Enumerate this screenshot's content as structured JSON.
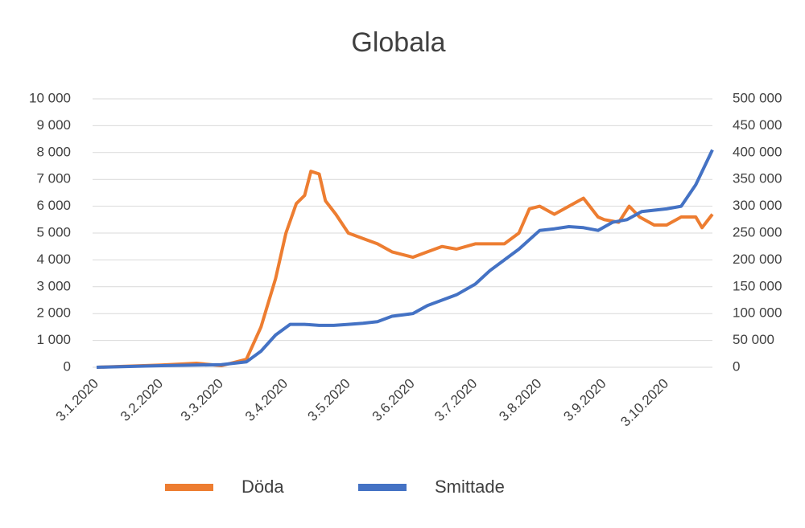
{
  "chart_data": {
    "type": "line",
    "title": "Globala",
    "xlim": [
      "3.1.2020",
      "25.10.2020"
    ],
    "xticks": [
      "3.1.2020",
      "3.2.2020",
      "3.3.2020",
      "3.4.2020",
      "3.5.2020",
      "3.6.2020",
      "3.7.2020",
      "3.8.2020",
      "3.9.2020",
      "3.10.2020"
    ],
    "ylim": [
      0,
      10000
    ],
    "yticks": [
      0,
      {
        "value": 1000,
        "label": "1 000"
      },
      {
        "value": 2000,
        "label": "2 000"
      },
      {
        "value": 3000,
        "label": "3 000"
      },
      {
        "value": 4000,
        "label": "4 000"
      },
      {
        "value": 5000,
        "label": "5 000"
      },
      {
        "value": 6000,
        "label": "6 000"
      },
      {
        "value": 7000,
        "label": "7 000"
      },
      {
        "value": 8000,
        "label": "8 000"
      },
      {
        "value": 9000,
        "label": "9 000"
      },
      {
        "value": 10000,
        "label": "10 000"
      }
    ],
    "y2lim": [
      0,
      500000
    ],
    "y2ticks": [
      0,
      {
        "value": 50000,
        "label": "50 000"
      },
      {
        "value": 100000,
        "label": "100 000"
      },
      {
        "value": 150000,
        "label": "150 000"
      },
      {
        "value": 200000,
        "label": "200 000"
      },
      {
        "value": 250000,
        "label": "250 000"
      },
      {
        "value": 300000,
        "label": "300 000"
      },
      {
        "value": 350000,
        "label": "350 000"
      },
      {
        "value": 400000,
        "label": "400 000"
      },
      {
        "value": 450000,
        "label": "450 000"
      },
      {
        "value": 500000,
        "label": "500 000"
      }
    ],
    "grid": true,
    "legend": "bottom",
    "series": [
      {
        "name": "Döda",
        "color": "#ed7d31",
        "x": [
          "3.1.2020",
          "3.2.2020",
          "20.2.2020",
          "3.3.2020",
          "15.3.2020",
          "22.3.2020",
          "29.3.2020",
          "3.4.2020",
          "8.4.2020",
          "12.4.2020",
          "15.4.2020",
          "19.4.2020",
          "22.4.2020",
          "27.4.2020",
          "3.5.2020",
          "10.5.2020",
          "17.5.2020",
          "24.5.2020",
          "3.6.2020",
          "10.6.2020",
          "17.6.2020",
          "24.6.2020",
          "3.7.2020",
          "10.7.2020",
          "17.7.2020",
          "24.7.2020",
          "29.7.2020",
          "3.8.2020",
          "10.8.2020",
          "17.8.2020",
          "24.8.2020",
          "31.8.2020",
          "3.9.2020",
          "10.9.2020",
          "15.9.2020",
          "20.9.2020",
          "27.9.2020",
          "3.10.2020",
          "10.10.2020",
          "17.10.2020",
          "20.10.2020",
          "25.10.2020"
        ],
        "values": [
          0,
          80,
          150,
          60,
          300,
          1500,
          3300,
          5000,
          6100,
          6400,
          7300,
          7200,
          6200,
          5700,
          5000,
          4800,
          4600,
          4300,
          4100,
          4300,
          4500,
          4400,
          4600,
          4600,
          4600,
          5000,
          5900,
          6000,
          5700,
          6000,
          6300,
          5600,
          5500,
          5400,
          6000,
          5600,
          5300,
          5300,
          5600,
          5600,
          5200,
          5700
        ]
      },
      {
        "name": "Smittade",
        "color": "#4472c4",
        "axis": "y2",
        "x": [
          "3.1.2020",
          "3.2.2020",
          "3.3.2020",
          "15.3.2020",
          "22.3.2020",
          "29.3.2020",
          "5.4.2020",
          "12.4.2020",
          "19.4.2020",
          "26.4.2020",
          "3.5.2020",
          "10.5.2020",
          "17.5.2020",
          "24.5.2020",
          "3.6.2020",
          "10.6.2020",
          "17.6.2020",
          "24.6.2020",
          "3.7.2020",
          "10.7.2020",
          "17.7.2020",
          "24.7.2020",
          "3.8.2020",
          "10.8.2020",
          "17.8.2020",
          "24.8.2020",
          "31.8.2020",
          "7.9.2020",
          "14.9.2020",
          "21.9.2020",
          "3.10.2020",
          "10.10.2020",
          "17.10.2020",
          "25.10.2020"
        ],
        "values": [
          0,
          3000,
          5000,
          10000,
          30000,
          60000,
          80000,
          80000,
          78000,
          78000,
          80000,
          82000,
          85000,
          95000,
          100000,
          115000,
          125000,
          135000,
          155000,
          180000,
          200000,
          220000,
          255000,
          258000,
          262000,
          260000,
          255000,
          270000,
          275000,
          290000,
          295000,
          300000,
          340000,
          405000
        ]
      }
    ]
  }
}
